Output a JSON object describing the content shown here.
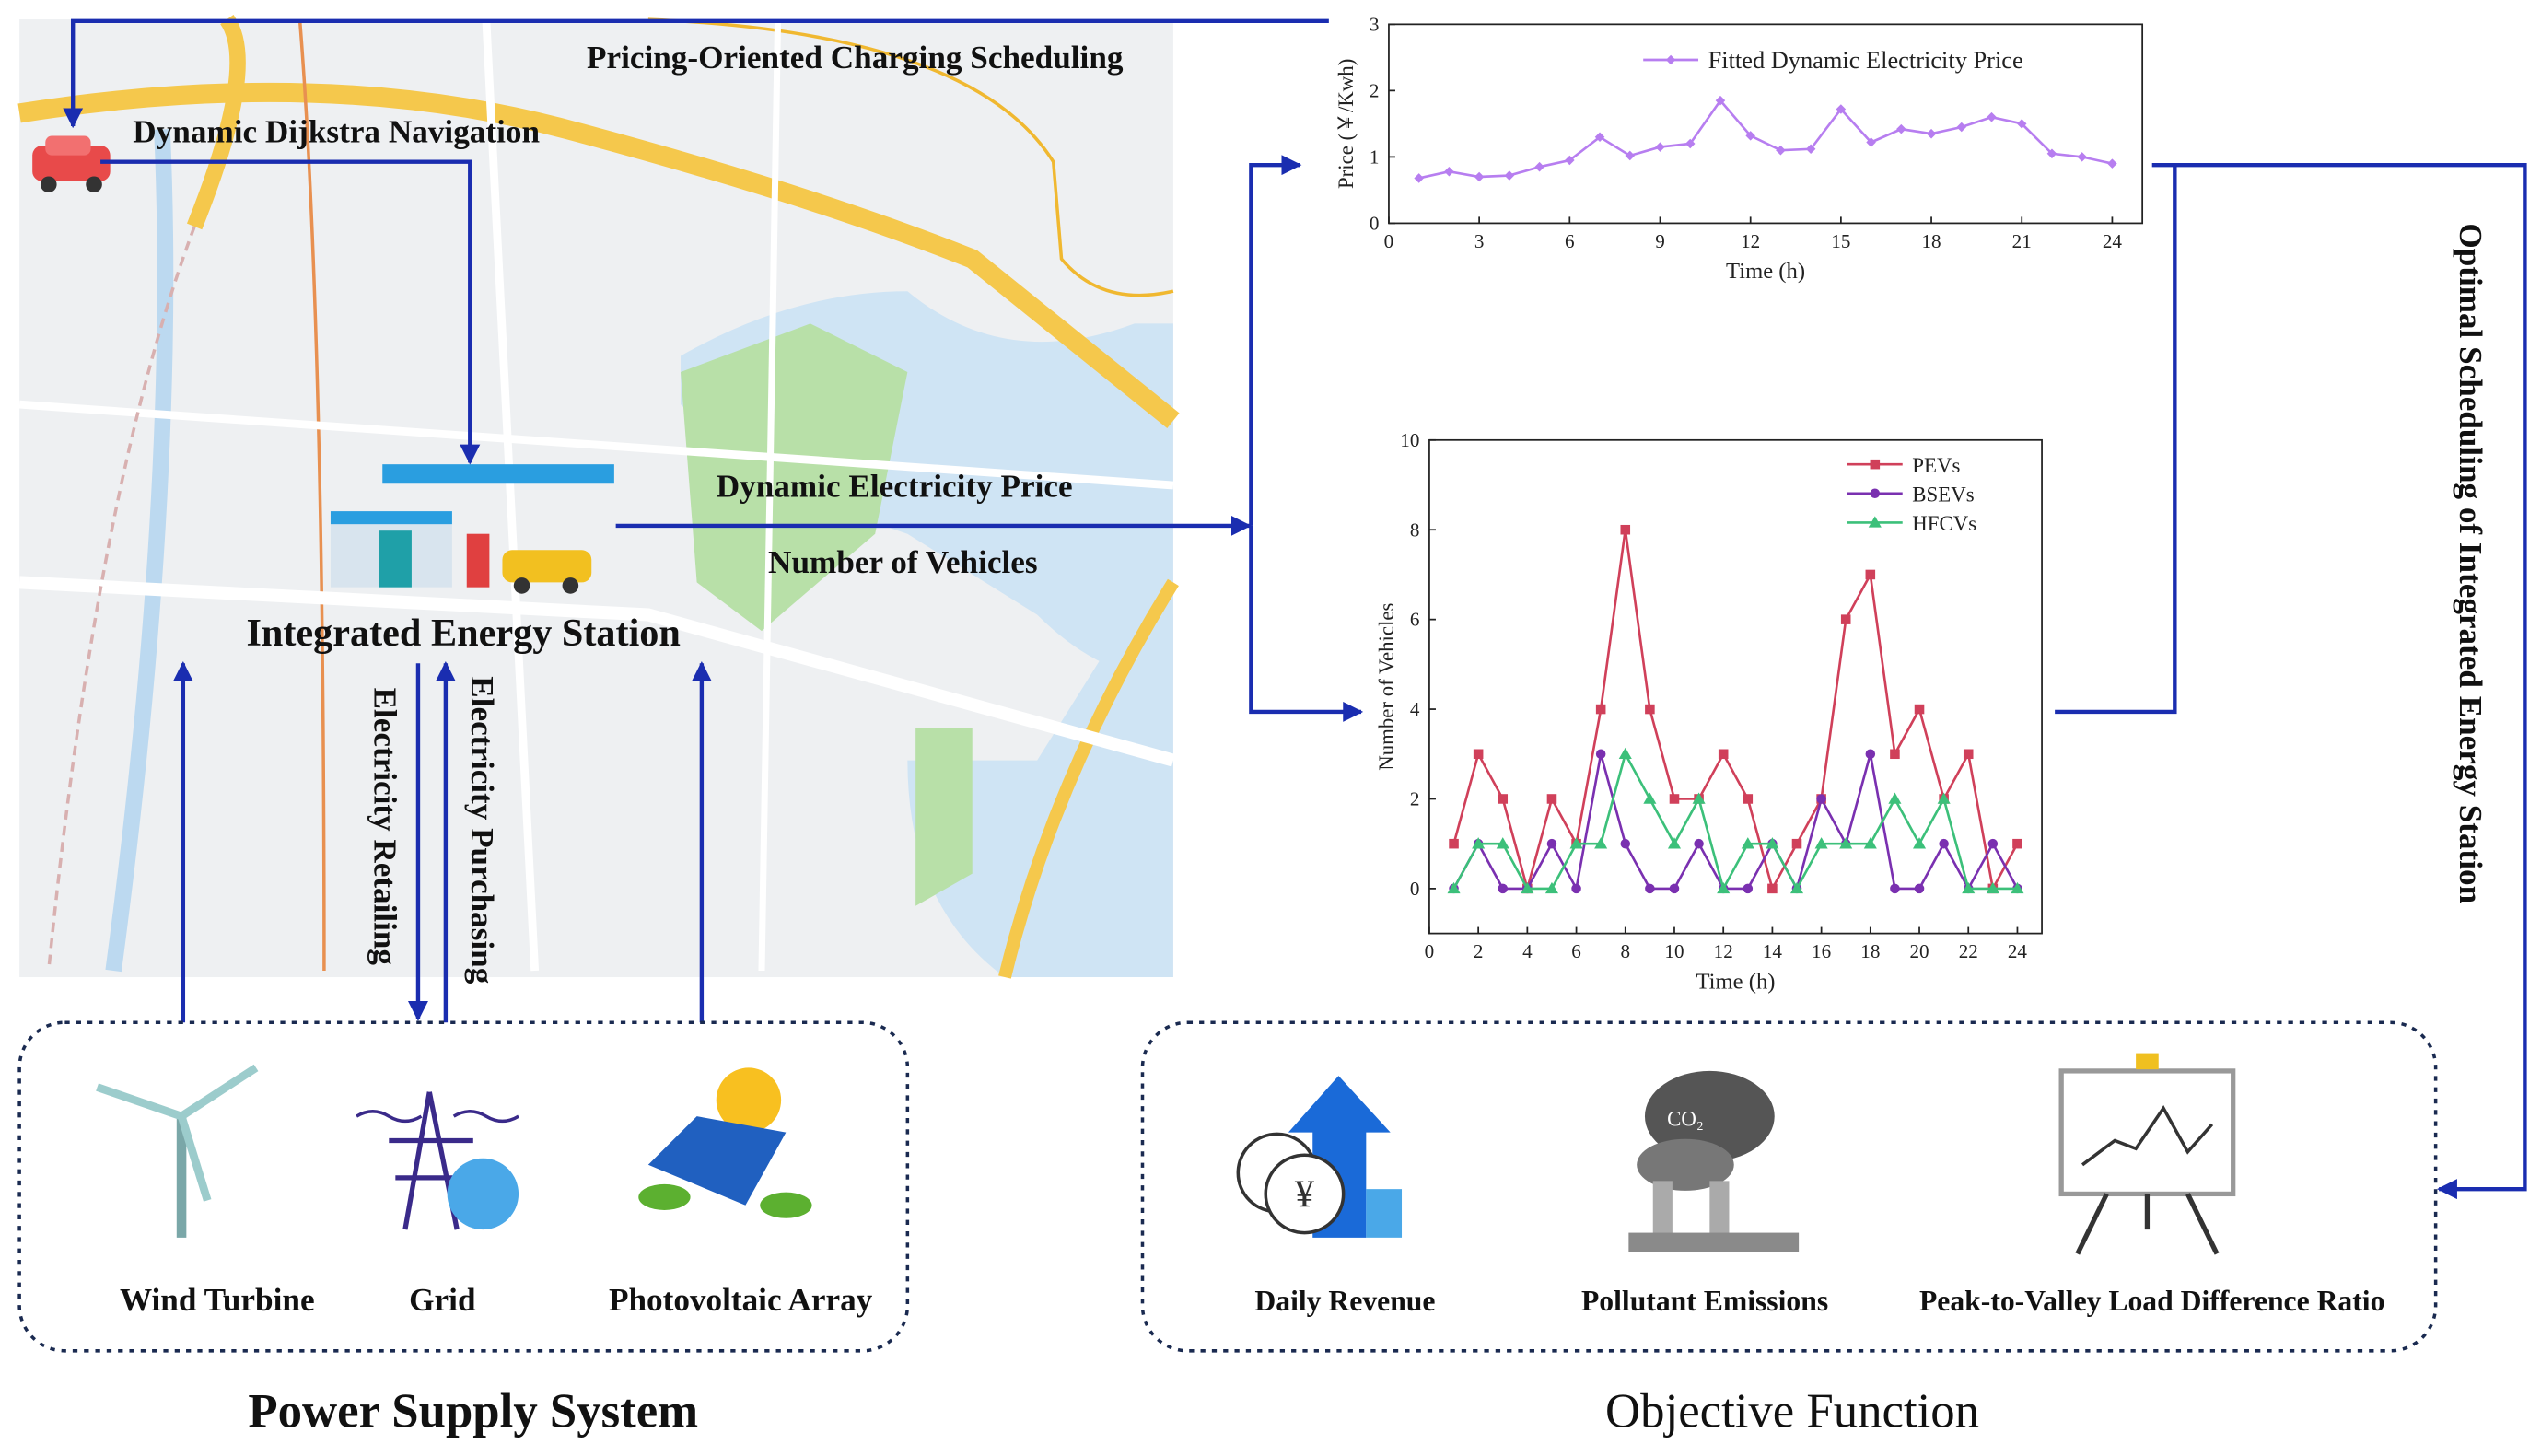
{
  "annotations": {
    "pricing": "Pricing-Oriented Charging Scheduling",
    "navigation": "Dynamic Dijkstra Navigation",
    "price": "Dynamic Electricity Price",
    "vehicles": "Number of Vehicles",
    "station": "Integrated Energy Station",
    "retailing": "Electricity Retailing",
    "purchasing": "Electricity Purchasing",
    "optimal": "Optimal Scheduling of Integrated Energy Station",
    "co2": "CO₂"
  },
  "power_supply": {
    "title": "Power Supply System",
    "items": [
      "Wind Turbine",
      "Grid",
      "Photovoltaic Array"
    ]
  },
  "objective": {
    "title": "Objective Function",
    "items": [
      "Daily Revenue",
      "Pollutant Emissions",
      "Peak-to-Valley Load Difference Ratio"
    ]
  },
  "chart_data": [
    {
      "type": "line",
      "xlabel": "Time (h)",
      "ylabel": "Price (￥/Kwh)",
      "x": [
        1,
        2,
        3,
        4,
        5,
        6,
        7,
        8,
        9,
        10,
        11,
        12,
        13,
        14,
        15,
        16,
        17,
        18,
        19,
        20,
        21,
        22,
        23,
        24
      ],
      "series": [
        {
          "name": "Fitted Dynamic Electricity Price",
          "color": "#b77ef0",
          "marker": "diamond",
          "values": [
            0.68,
            0.78,
            0.7,
            0.72,
            0.85,
            0.95,
            1.3,
            1.02,
            1.15,
            1.2,
            1.85,
            1.32,
            1.1,
            1.12,
            1.72,
            1.22,
            1.42,
            1.35,
            1.45,
            1.6,
            1.5,
            1.05,
            1.0,
            0.9
          ]
        }
      ],
      "xlim": [
        0,
        25
      ],
      "ylim": [
        0,
        3
      ],
      "xticks": [
        0,
        3,
        6,
        9,
        12,
        15,
        18,
        21,
        24
      ],
      "yticks": [
        0,
        1,
        2,
        3
      ],
      "grid": false,
      "legend": "upper right"
    },
    {
      "type": "line",
      "xlabel": "Time (h)",
      "ylabel": "Number of Vehicles",
      "x": [
        1,
        2,
        3,
        4,
        5,
        6,
        7,
        8,
        9,
        10,
        11,
        12,
        13,
        14,
        15,
        16,
        17,
        18,
        19,
        20,
        21,
        22,
        23,
        24
      ],
      "series": [
        {
          "name": "PEVs",
          "color": "#d0405a",
          "marker": "square",
          "values": [
            1,
            3,
            2,
            0,
            2,
            1,
            4,
            8,
            4,
            2,
            2,
            3,
            2,
            0,
            1,
            2,
            6,
            7,
            3,
            4,
            2,
            3,
            0,
            1
          ]
        },
        {
          "name": "BSEVs",
          "color": "#7a30b0",
          "marker": "circle",
          "values": [
            0,
            1,
            0,
            0,
            1,
            0,
            3,
            1,
            0,
            0,
            1,
            0,
            0,
            1,
            0,
            2,
            1,
            3,
            0,
            0,
            1,
            0,
            1,
            0
          ]
        },
        {
          "name": "HFCVs",
          "color": "#3cc07a",
          "marker": "triangle",
          "values": [
            0,
            1,
            1,
            0,
            0,
            1,
            1,
            3,
            2,
            1,
            2,
            0,
            1,
            1,
            0,
            1,
            1,
            1,
            2,
            1,
            2,
            0,
            0,
            0
          ]
        }
      ],
      "xlim": [
        0,
        25
      ],
      "ylim": [
        -1,
        10
      ],
      "xticks": [
        0,
        2,
        4,
        6,
        8,
        10,
        12,
        14,
        16,
        18,
        20,
        22,
        24
      ],
      "yticks": [
        0,
        2,
        4,
        6,
        8,
        10
      ],
      "grid": false,
      "legend": "upper right"
    }
  ]
}
